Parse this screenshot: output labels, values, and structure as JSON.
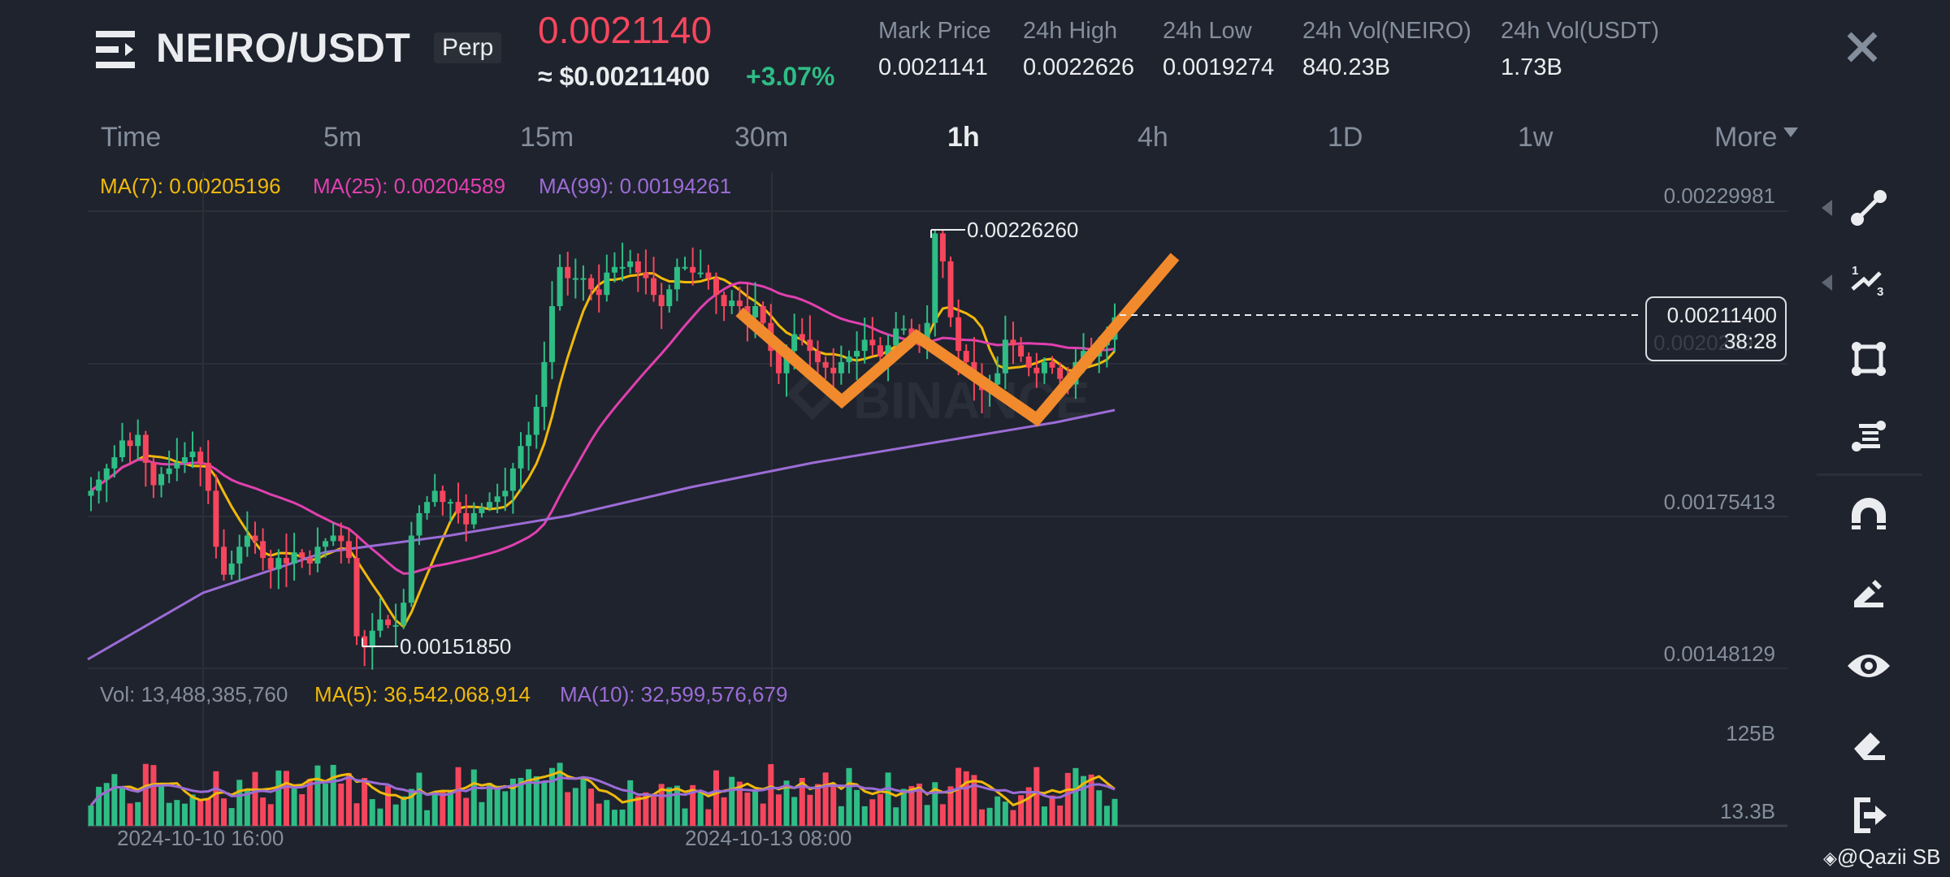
{
  "header": {
    "pair": "NEIRO/USDT",
    "contract_type": "Perp",
    "last_price": "0.0021140",
    "usd_price": "≈ $0.00211400",
    "change_pct": "+3.07%",
    "stats": [
      {
        "label": "Mark Price",
        "value": "0.0021141"
      },
      {
        "label": "24h High",
        "value": "0.0022626"
      },
      {
        "label": "24h Low",
        "value": "0.0019274"
      },
      {
        "label": "24h Vol(NEIRO)",
        "value": "840.23B"
      },
      {
        "label": "24h Vol(USDT)",
        "value": "1.73B"
      }
    ],
    "icons": {
      "menu": "menu-icon",
      "close": "close-icon"
    }
  },
  "tabs": [
    {
      "label": "Time"
    },
    {
      "label": "5m"
    },
    {
      "label": "15m"
    },
    {
      "label": "30m"
    },
    {
      "label": "1h",
      "active": true
    },
    {
      "label": "4h"
    },
    {
      "label": "1D"
    },
    {
      "label": "1w"
    },
    {
      "label": "More"
    }
  ],
  "ma_legend": {
    "ma7": "MA(7): 0.00205196",
    "ma25": "MA(25): 0.00204589",
    "ma99": "MA(99): 0.00194261"
  },
  "price_axis": [
    "0.00229981",
    "0.00202697",
    "0.00175413",
    "0.00148129"
  ],
  "current_price_box": {
    "price": "0.00211400",
    "countdown": "38:28"
  },
  "annotations": {
    "high": "0.00226260",
    "low": "0.00151850"
  },
  "watermark_center": "BINANCE",
  "volume_legend": {
    "vol": "Vol: 13,488,385,760",
    "ma5": "MA(5): 36,542,068,914",
    "ma10": "MA(10): 32,599,576,679"
  },
  "volume_axis": [
    "125B",
    "13.3B"
  ],
  "time_axis": [
    "2024-10-10 16:00",
    "2024-10-13 08:00"
  ],
  "toolbar": [
    {
      "name": "trend-line-icon"
    },
    {
      "name": "fib-wave-icon"
    },
    {
      "name": "rectangle-icon"
    },
    {
      "name": "fib-retracement-icon"
    },
    {
      "name": "magnet-icon"
    },
    {
      "name": "pencil-icon"
    },
    {
      "name": "eye-icon"
    },
    {
      "name": "eraser-icon"
    },
    {
      "name": "exit-icon"
    }
  ],
  "credit": "@Qazii SB",
  "colors": {
    "background": "#1f232d",
    "up": "#2ebd85",
    "down": "#f6465d",
    "ma7": "#f0b90b",
    "ma25": "#e040b0",
    "ma99": "#9b6cd6",
    "drawing": "#f08a2c",
    "muted": "#848e9c"
  },
  "chart_data": {
    "type": "candlestick",
    "title": "NEIRO/USDT Perp 1h",
    "timeframe": "1h",
    "x_labels": [
      "2024-10-10 16:00",
      "2024-10-13 08:00"
    ],
    "y_ticks": [
      0.00229981,
      0.00202697,
      0.00175413,
      0.00148129
    ],
    "ylim": [
      0.0014,
      0.00232
    ],
    "last_price": 0.002114,
    "high_marker": 0.0022626,
    "low_marker": 0.0015185,
    "ma_values": {
      "MA7": 0.00205196,
      "MA25": 0.00204589,
      "MA99": 0.00194261
    },
    "volume_ticks": [
      "125B",
      "13.3B"
    ],
    "volume_ma": {
      "MA5": 36542068914,
      "MA10": 32599576679,
      "last_vol": 13488385760
    },
    "candles_close": [
      0.0018,
      0.00182,
      0.00184,
      0.00186,
      0.00189,
      0.00188,
      0.0019,
      0.00185,
      0.00181,
      0.00183,
      0.00184,
      0.00185,
      0.00186,
      0.00187,
      0.00185,
      0.0018,
      0.0017,
      0.00165,
      0.00167,
      0.0017,
      0.00172,
      0.00171,
      0.00168,
      0.00166,
      0.00168,
      0.00167,
      0.00169,
      0.00168,
      0.00167,
      0.0017,
      0.00171,
      0.00172,
      0.00171,
      0.00168,
      0.00154,
      0.00152,
      0.00155,
      0.00157,
      0.00156,
      0.00156,
      0.0016,
      0.00172,
      0.00176,
      0.00178,
      0.0018,
      0.00178,
      0.00178,
      0.00176,
      0.00174,
      0.00176,
      0.00177,
      0.00178,
      0.00179,
      0.0018,
      0.00184,
      0.00188,
      0.0019,
      0.00195,
      0.00203,
      0.00213,
      0.0022,
      0.00218,
      0.00218,
      0.00218,
      0.00216,
      0.00215,
      0.00219,
      0.0022,
      0.0022,
      0.00221,
      0.00219,
      0.00218,
      0.00215,
      0.00213,
      0.00216,
      0.0022,
      0.0022,
      0.00219,
      0.00219,
      0.00218,
      0.00215,
      0.00213,
      0.00214,
      0.00213,
      0.00211,
      0.00213,
      0.0021,
      0.00205,
      0.00201,
      0.00205,
      0.00208,
      0.00207,
      0.00205,
      0.00203,
      0.00202,
      0.00201,
      0.00203,
      0.00204,
      0.00205,
      0.00207,
      0.00206,
      0.00204,
      0.00206,
      0.00209,
      0.00209,
      0.00207,
      0.00206,
      0.0021,
      0.00226,
      0.00221,
      0.00211,
      0.00205,
      0.00203,
      0.002,
      0.00198,
      0.00199,
      0.00201,
      0.00207,
      0.00206,
      0.00204,
      0.00202,
      0.00201,
      0.00203,
      0.00202,
      0.002,
      0.00199,
      0.00203,
      0.00205,
      0.00204,
      0.00206,
      0.00207,
      0.00211
    ]
  }
}
